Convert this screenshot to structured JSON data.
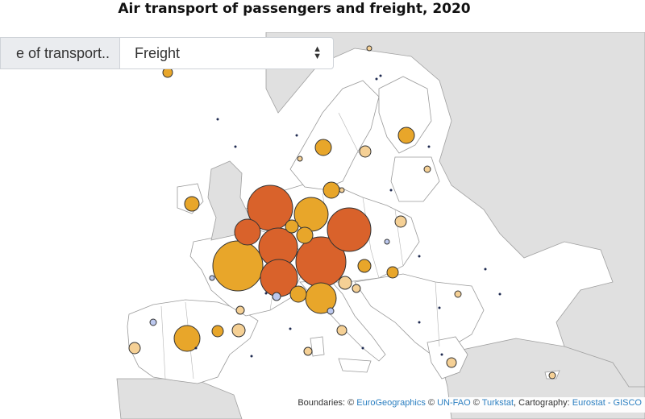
{
  "title": "Air transport of passengers and freight, 2020",
  "controls": {
    "mode_label": "e of transport..",
    "selected_option": "Freight"
  },
  "attribution": {
    "prefix": "Boundaries: ©",
    "eurogeographics": "EuroGeographics",
    "sep1": "©",
    "unfao": "UN-FAO",
    "sep2": "©",
    "turkstat": "Turkstat",
    "cartography": ", Cartography:",
    "eurostat": "Eurostat - GISCO"
  },
  "colors": {
    "sea": "#ffffff",
    "land": "#ffffff",
    "non_eu": "#e0e0e0",
    "border": "#9a9a9a",
    "dark_orange": "#d9622b",
    "medium_orange": "#e8a62a",
    "light_orange": "#f5d095",
    "blue": "#bcc8ee"
  },
  "markers": [
    {
      "name": "France",
      "class": "medium",
      "size": 31
    },
    {
      "name": "Germany",
      "class": "dark",
      "size": 28
    },
    {
      "name": "Netherlands",
      "class": "dark",
      "size": 31
    },
    {
      "name": "Belgium",
      "class": "dark",
      "size": 24
    },
    {
      "name": "Luxembourg",
      "class": "dark",
      "size": 23
    },
    {
      "name": "Poland",
      "class": "dark",
      "size": 27
    },
    {
      "name": "Czechia region",
      "class": "medium",
      "size": 21
    },
    {
      "name": "Italy",
      "class": "medium",
      "size": 19
    },
    {
      "name": "Spain",
      "class": "medium",
      "size": 16
    },
    {
      "name": "Ireland",
      "class": "medium",
      "size": 9
    },
    {
      "name": "Denmark",
      "class": "medium",
      "size": 10
    },
    {
      "name": "Sweden",
      "class": "medium",
      "size": 10
    },
    {
      "name": "Finland",
      "class": "medium",
      "size": 10
    },
    {
      "name": "Hungary",
      "class": "medium",
      "size": 8
    }
  ]
}
